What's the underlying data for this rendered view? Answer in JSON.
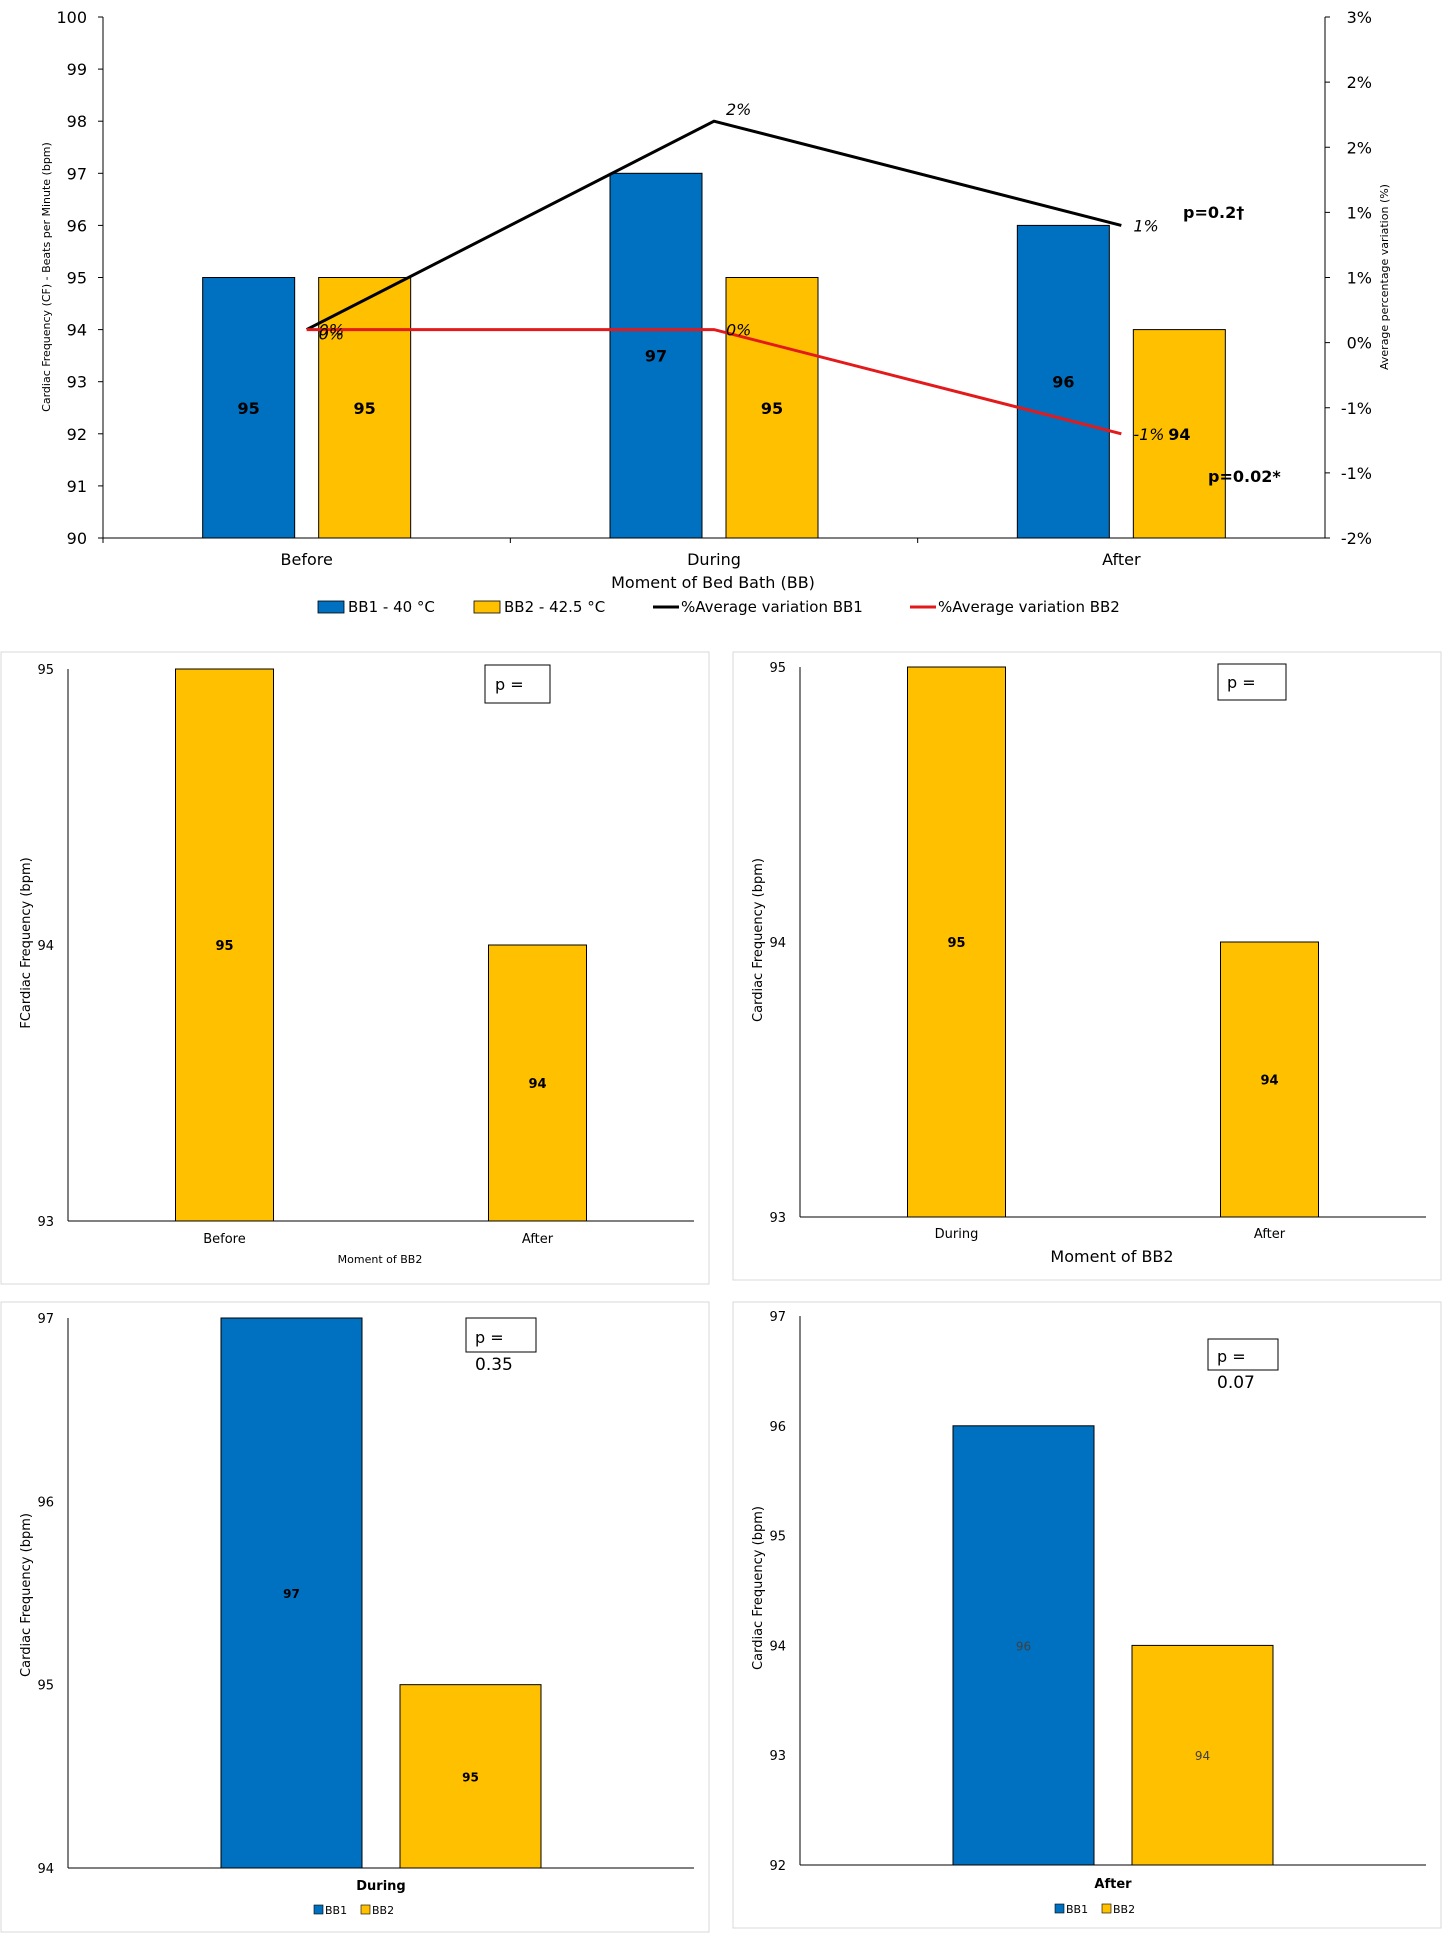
{
  "colors": {
    "bb1": "#0070C0",
    "bb2": "#FFC000",
    "line_bb1": "#000000",
    "line_bb2": "#E31A1C"
  },
  "chart_data": [
    {
      "type": "bar+line",
      "categories": [
        "Before",
        "During",
        "After"
      ],
      "xlabel": "Moment of Bed Bath (BB)",
      "ylabel": "Cardiac Frequency (CF) - Beats per Minute (bpm)",
      "y2label": "Average percentage variation (%)",
      "ylim": [
        90,
        100
      ],
      "y_ticks": [
        "90",
        "91",
        "92",
        "93",
        "94",
        "95",
        "96",
        "97",
        "98",
        "99",
        "100"
      ],
      "y2_ticks": [
        "-2%",
        "-1%",
        "-1%",
        "0%",
        "1%",
        "1%",
        "2%",
        "2%",
        "3%"
      ],
      "series": [
        {
          "name": "BB1 - 40 °C",
          "type": "bar",
          "values": [
            95,
            97,
            96
          ],
          "labels": [
            "95",
            "97",
            "96"
          ]
        },
        {
          "name": "BB2 - 42.5 °C",
          "type": "bar",
          "values": [
            95,
            95,
            94
          ],
          "labels": [
            "95",
            "95",
            "94"
          ]
        },
        {
          "name": "%Average variation BB1",
          "type": "line",
          "axis": "secondary",
          "values": [
            0,
            2,
            1
          ],
          "labels": [
            "0%",
            "2%",
            "1%"
          ]
        },
        {
          "name": "%Average variation BB2",
          "type": "line",
          "axis": "secondary",
          "values": [
            0,
            0,
            -1
          ],
          "labels": [
            "0%",
            "0%",
            "-1%"
          ]
        }
      ],
      "annotations": [
        "p=0.2†",
        "p=0.02*"
      ],
      "legend": "bottom"
    },
    {
      "type": "bar",
      "categories": [
        "Before",
        "After"
      ],
      "values": [
        95,
        94
      ],
      "labels": [
        "95",
        "94"
      ],
      "xlabel": "Moment of BB2",
      "ylabel": "FCardiac Frequency (bpm)",
      "ylim": [
        93,
        95
      ],
      "y_ticks": [
        "93",
        "94",
        "95"
      ],
      "p_label": "p ="
    },
    {
      "type": "bar",
      "categories": [
        "During",
        "After"
      ],
      "values": [
        95,
        94
      ],
      "labels": [
        "95",
        "94"
      ],
      "xlabel": "Moment of BB2",
      "ylabel": "Cardiac Frequency (bpm)",
      "ylim": [
        93,
        95
      ],
      "y_ticks": [
        "93",
        "94",
        "95"
      ],
      "p_label": "p ="
    },
    {
      "type": "bar",
      "categories": [
        "During"
      ],
      "series": [
        {
          "name": "BB1",
          "values": [
            97
          ]
        },
        {
          "name": "BB2",
          "values": [
            95
          ]
        }
      ],
      "labels": [
        "97",
        "95"
      ],
      "ylabel": "Cardiac Frequency (bpm)",
      "ylim": [
        94,
        97
      ],
      "y_ticks": [
        "94",
        "95",
        "96",
        "97"
      ],
      "p_label": "p =",
      "p_value": "0.35",
      "legend": "bottom"
    },
    {
      "type": "bar",
      "categories": [
        "After"
      ],
      "series": [
        {
          "name": "BB1",
          "values": [
            96
          ]
        },
        {
          "name": "BB2",
          "values": [
            94
          ]
        }
      ],
      "labels": [
        "96",
        "94"
      ],
      "ylabel": "Cardiac Frequency (bpm)",
      "ylim": [
        92,
        97
      ],
      "y_ticks": [
        "92",
        "93",
        "94",
        "95",
        "96",
        "97"
      ],
      "p_label": "p =",
      "p_value": "0.07",
      "legend": "bottom"
    }
  ]
}
